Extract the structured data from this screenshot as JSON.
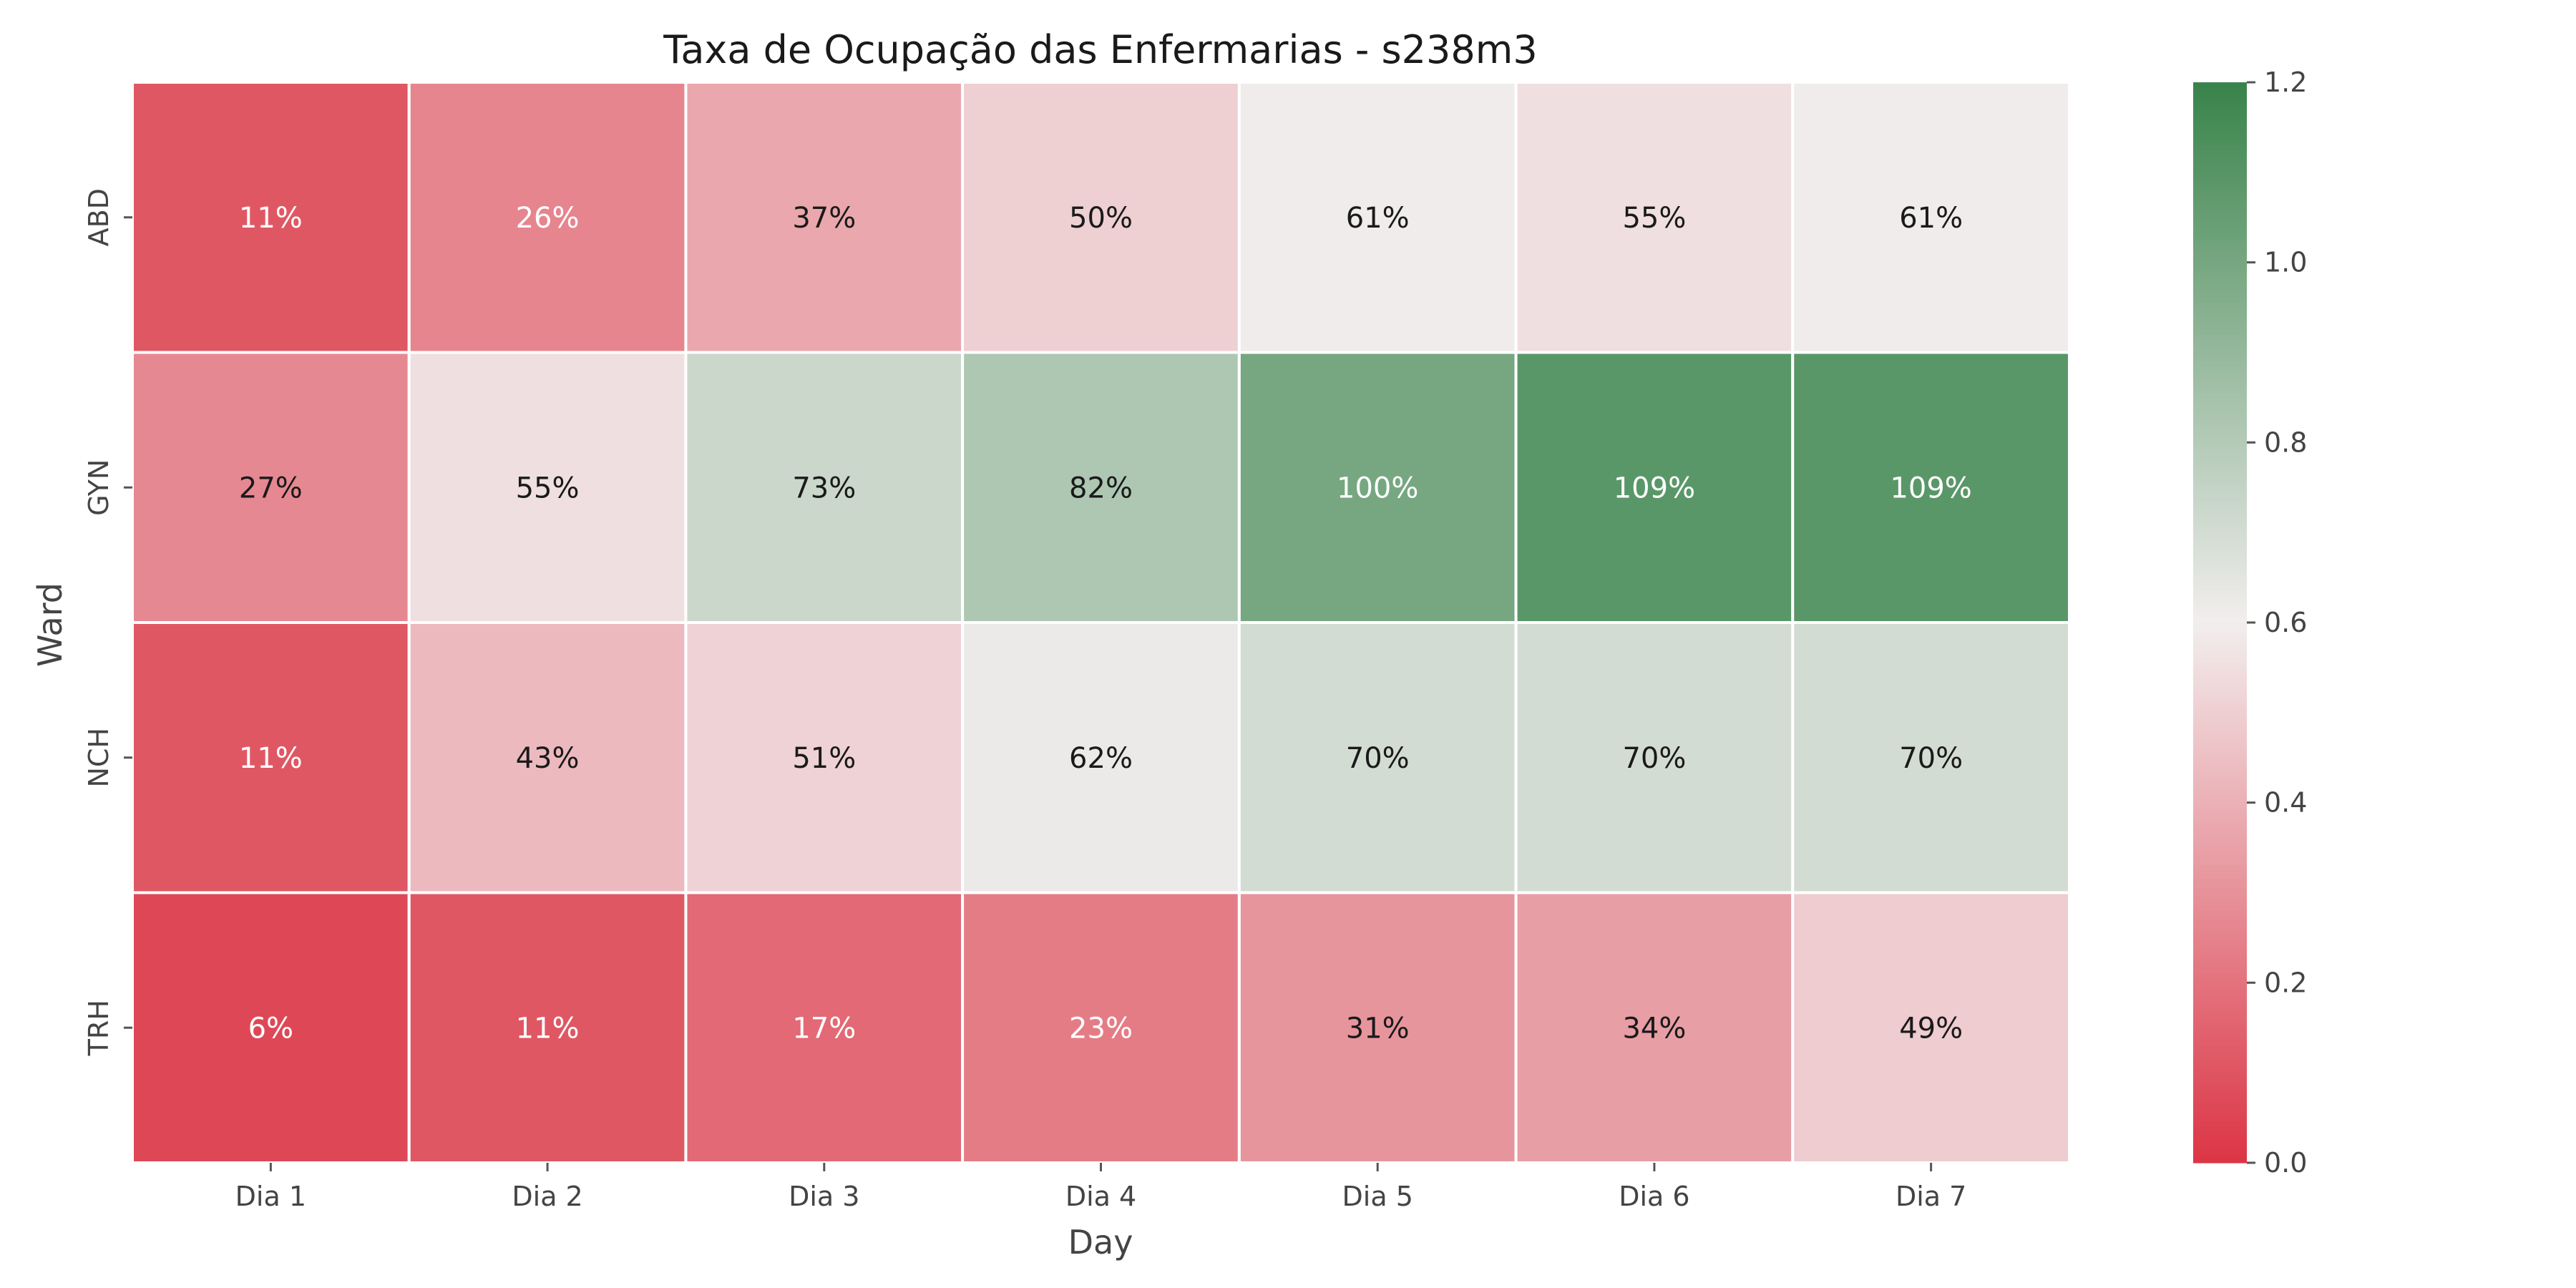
{
  "chart_data": {
    "type": "heatmap",
    "title": "Taxa de Ocupação das Enfermarias - s238m3",
    "xlabel": "Day",
    "ylabel": "Ward",
    "x_categories": [
      "Dia 1",
      "Dia 2",
      "Dia 3",
      "Dia 4",
      "Dia 5",
      "Dia 6",
      "Dia 7"
    ],
    "y_categories": [
      "ABD",
      "GYN",
      "NCH",
      "TRH"
    ],
    "values": [
      [
        0.11,
        0.26,
        0.37,
        0.5,
        0.61,
        0.55,
        0.61
      ],
      [
        0.27,
        0.55,
        0.73,
        0.82,
        1.0,
        1.09,
        1.09
      ],
      [
        0.11,
        0.43,
        0.51,
        0.62,
        0.7,
        0.7,
        0.7
      ],
      [
        0.06,
        0.11,
        0.17,
        0.23,
        0.31,
        0.34,
        0.49
      ]
    ],
    "cell_labels": [
      [
        "11%",
        "26%",
        "37%",
        "50%",
        "61%",
        "55%",
        "61%"
      ],
      [
        "27%",
        "55%",
        "73%",
        "82%",
        "100%",
        "109%",
        "109%"
      ],
      [
        "11%",
        "43%",
        "51%",
        "62%",
        "70%",
        "70%",
        "70%"
      ],
      [
        "6%",
        "11%",
        "17%",
        "23%",
        "31%",
        "34%",
        "49%"
      ]
    ],
    "colorbar": {
      "range": [
        0.0,
        1.2
      ],
      "ticks": [
        0.0,
        0.2,
        0.4,
        0.6,
        0.8,
        1.0,
        1.2
      ],
      "tick_labels": [
        "0.0",
        "0.2",
        "0.4",
        "0.6",
        "0.8",
        "1.0",
        "1.2"
      ],
      "colors": {
        "low": "#dc3545",
        "mid": "#f2eeee",
        "high": "#38834a"
      }
    },
    "grid": false
  }
}
